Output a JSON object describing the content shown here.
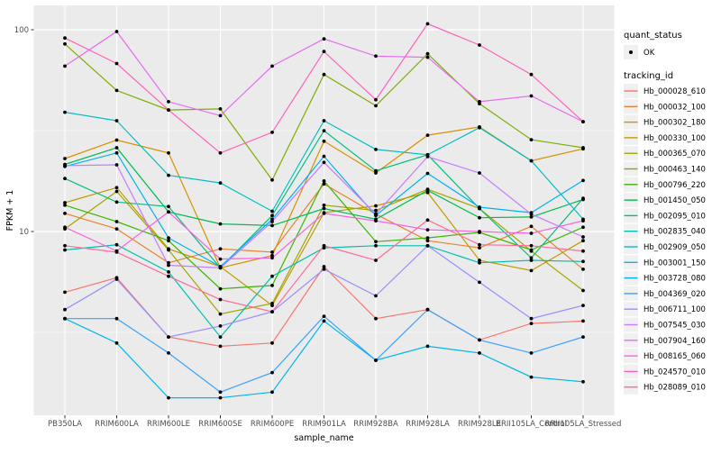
{
  "style": {
    "background": "#FFFFFF",
    "panel_bg": "#EBEBEB",
    "grid_color": "#FFFFFF",
    "tick_color": "#333333",
    "axis_text_color": "#4D4D4D",
    "title_color": "#000000",
    "legend_key_bg": "#F0F0F0",
    "point_color": "#000000"
  },
  "legend": {
    "quant_status": {
      "title": "quant_status",
      "items": [
        {
          "label": "OK",
          "marker": "black-point"
        }
      ]
    },
    "tracking_id": {
      "title": "tracking_id"
    }
  },
  "chart_data": {
    "type": "line",
    "title": "",
    "xlabel": "sample_name",
    "ylabel": "FPKM + 1",
    "yscale": "log10",
    "ylim": [
      1.24,
      127
    ],
    "grid": true,
    "legend_position": "right",
    "marker": {
      "shape": "point",
      "color": "#000000"
    },
    "y_major_ticks": [
      {
        "value": 100,
        "label": "100"
      },
      {
        "value": 10,
        "label": "10"
      }
    ],
    "y_minor_ticks": [
      31.62,
      3.162
    ],
    "categories": [
      "PB350LA",
      "RRIM600LA",
      "RRIM600LE",
      "RRIM600SE",
      "RRIM600PE",
      "RRIM901LA",
      "RRIM928BA",
      "RRIM928LA",
      "RRIM928LE",
      "RRII105LA_Control",
      "RRII105LA_Stressed"
    ],
    "series": [
      {
        "name": "Hb_000028_610",
        "color": "#F8766D",
        "values": [
          5.0,
          5.9,
          3.0,
          2.7,
          2.8,
          6.7,
          3.7,
          4.1,
          2.9,
          3.5,
          3.6
        ]
      },
      {
        "name": "Hb_000032_100",
        "color": "#EA8331",
        "values": [
          12.3,
          10.3,
          7.0,
          8.2,
          7.9,
          17.2,
          12.2,
          9.0,
          8.3,
          10.6,
          6.5
        ]
      },
      {
        "name": "Hb_000302_180",
        "color": "#D89000",
        "values": [
          23.0,
          28.4,
          24.5,
          6.6,
          7.6,
          28.0,
          19.5,
          30.0,
          33.0,
          22.4,
          25.7
        ]
      },
      {
        "name": "Hb_000330_100",
        "color": "#C09B00",
        "values": [
          13.9,
          16.5,
          8.2,
          6.7,
          4.3,
          12.4,
          13.4,
          15.6,
          7.2,
          6.4,
          9.0
        ]
      },
      {
        "name": "Hb_000365_070",
        "color": "#A3A500",
        "values": [
          10.3,
          15.8,
          8.1,
          3.9,
          4.4,
          13.5,
          12.7,
          16.2,
          13.0,
          8.0,
          5.1
        ]
      },
      {
        "name": "Hb_000463_140",
        "color": "#7CAE00",
        "values": [
          85.0,
          50.0,
          40.0,
          40.5,
          18.0,
          60.0,
          42.0,
          76.0,
          43.0,
          28.5,
          26.0
        ]
      },
      {
        "name": "Hb_000796_220",
        "color": "#39B600",
        "values": [
          13.5,
          11.2,
          9.0,
          5.2,
          5.4,
          17.8,
          8.9,
          9.3,
          9.9,
          8.1,
          10.5
        ]
      },
      {
        "name": "Hb_001450_050",
        "color": "#00BB4E",
        "values": [
          21.5,
          26.0,
          12.5,
          10.9,
          10.7,
          13.0,
          11.5,
          16.0,
          11.7,
          11.8,
          14.4
        ]
      },
      {
        "name": "Hb_002095_010",
        "color": "#00BF7D",
        "values": [
          18.3,
          14.0,
          13.3,
          6.6,
          12.0,
          31.6,
          20.0,
          24.0,
          13.0,
          7.4,
          14.6
        ]
      },
      {
        "name": "Hb_002835_040",
        "color": "#00C0AF",
        "values": [
          8.1,
          8.6,
          6.3,
          3.0,
          6.0,
          8.3,
          8.5,
          8.5,
          7.0,
          7.2,
          7.1
        ]
      },
      {
        "name": "Hb_002909_050",
        "color": "#00BFC4",
        "values": [
          39.0,
          35.4,
          19.0,
          17.4,
          12.6,
          35.4,
          25.5,
          24.0,
          32.7,
          22.4,
          11.5
        ]
      },
      {
        "name": "Hb_003001_150",
        "color": "#00B8E7",
        "values": [
          3.7,
          2.8,
          1.5,
          1.5,
          1.6,
          3.6,
          2.3,
          2.7,
          2.5,
          1.9,
          1.8
        ]
      },
      {
        "name": "Hb_003728_080",
        "color": "#00B0F6",
        "values": [
          21.0,
          24.5,
          9.3,
          6.7,
          11.5,
          23.6,
          12.0,
          19.4,
          13.2,
          12.4,
          17.9
        ]
      },
      {
        "name": "Hb_004369_020",
        "color": "#35A2FF",
        "values": [
          3.7,
          3.7,
          2.5,
          1.6,
          2.0,
          3.8,
          2.3,
          4.1,
          2.9,
          2.5,
          3.0
        ]
      },
      {
        "name": "Hb_006711_100",
        "color": "#9590FF",
        "values": [
          4.1,
          5.8,
          3.0,
          3.4,
          4.0,
          6.5,
          4.8,
          8.5,
          5.6,
          3.7,
          4.3
        ]
      },
      {
        "name": "Hb_007545_030",
        "color": "#C77CFF",
        "values": [
          21.2,
          21.4,
          6.8,
          6.6,
          11.2,
          22.0,
          12.2,
          23.5,
          19.5,
          12.2,
          9.4
        ]
      },
      {
        "name": "Hb_007904_160",
        "color": "#E76BF3",
        "values": [
          66.0,
          98.0,
          44.0,
          37.5,
          66.0,
          90.0,
          74.0,
          73.0,
          44.0,
          47.0,
          35.0
        ]
      },
      {
        "name": "Hb_008165_060",
        "color": "#F763E0",
        "values": [
          10.5,
          8.0,
          12.5,
          7.3,
          7.4,
          12.3,
          11.3,
          10.2,
          10.0,
          9.8,
          11.3
        ]
      },
      {
        "name": "Hb_024570_010",
        "color": "#FF62BC",
        "values": [
          91.0,
          68.0,
          40.0,
          24.5,
          31.0,
          78.0,
          45.0,
          107.0,
          84.0,
          60.0,
          35.0
        ]
      },
      {
        "name": "Hb_028089_010",
        "color": "#FF6A98",
        "values": [
          8.5,
          7.9,
          6.0,
          4.6,
          4.0,
          8.5,
          7.2,
          11.4,
          8.6,
          8.5,
          8.0
        ]
      }
    ]
  }
}
